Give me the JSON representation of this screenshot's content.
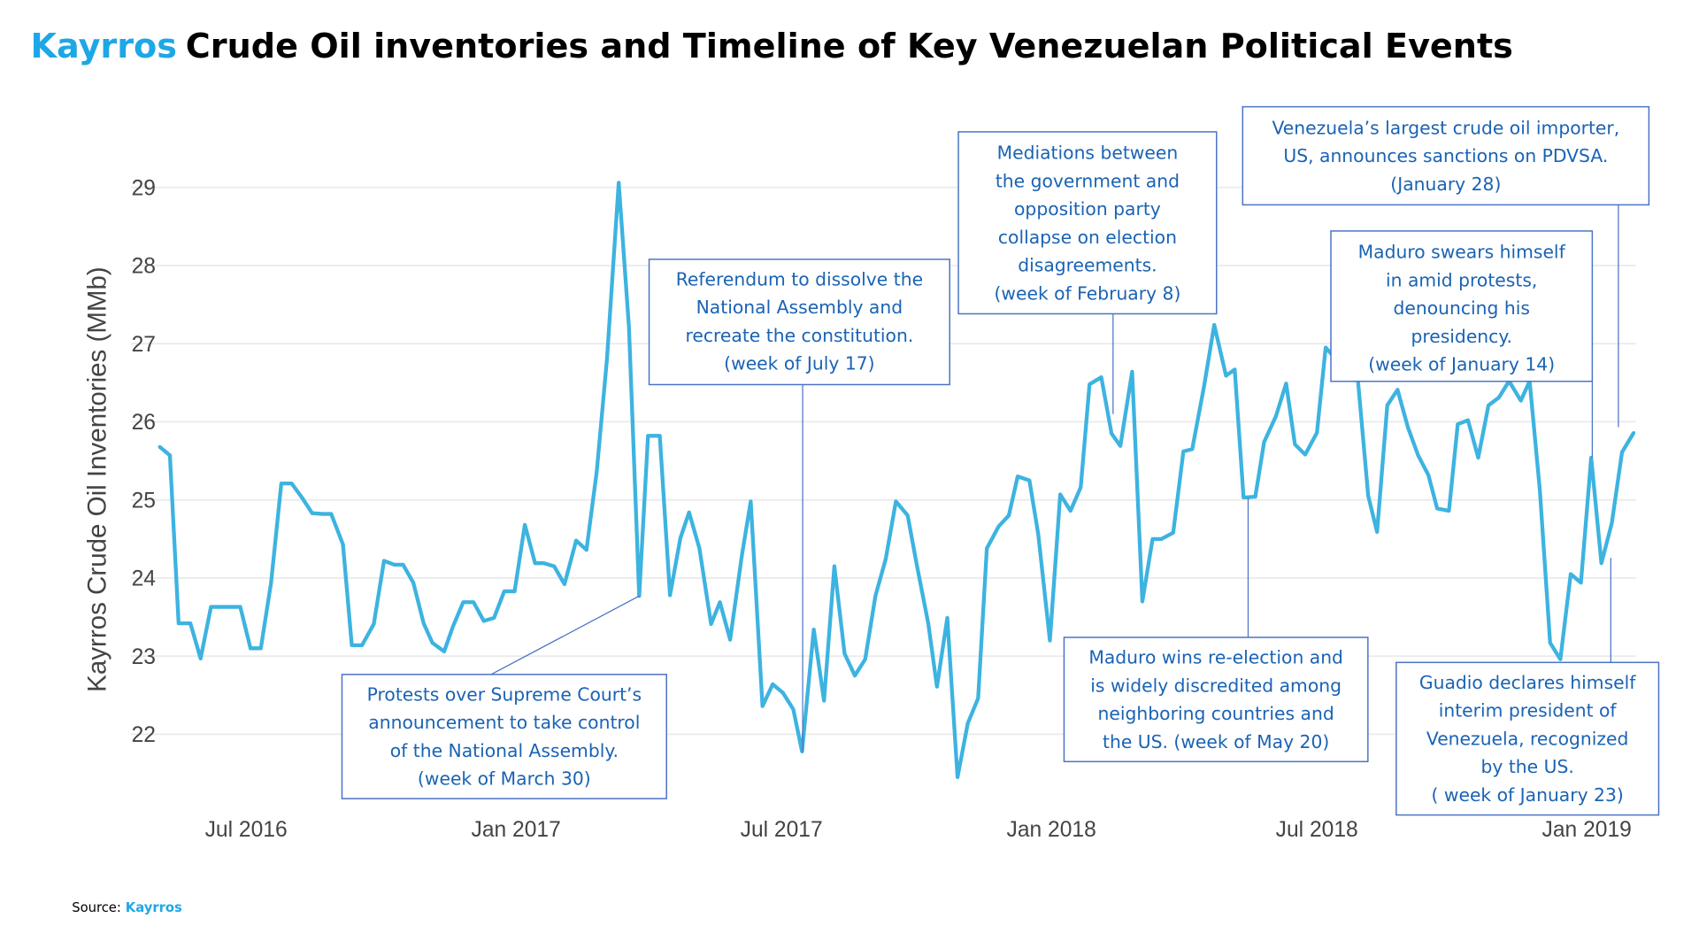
{
  "title": {
    "brand": "Kayrros",
    "text": "Crude Oil inventories and Timeline of Key Venezuelan Political Events"
  },
  "source": {
    "label": "Source:",
    "brand": "Kayrros"
  },
  "colors": {
    "brand": "#1ea7e6",
    "series": "#3db3e0",
    "annotation_text": "#1a63b4",
    "annotation_border": "#4a72c4"
  },
  "chart_data": {
    "type": "line",
    "title": "Kayrros Crude Oil inventories and Timeline of Key Venezuelan Political Events",
    "xlabel": "",
    "ylabel": "Kayrros Crude Oil Inventories (MMb)",
    "ylim": [
      21.3,
      29.3
    ],
    "yticks": [
      22,
      23,
      24,
      25,
      26,
      27,
      28,
      29
    ],
    "xticks": [
      {
        "date": "2016-07-01",
        "label": "Jul 2016"
      },
      {
        "date": "2017-01-01",
        "label": "Jan 2017"
      },
      {
        "date": "2017-07-01",
        "label": "Jul 2017"
      },
      {
        "date": "2018-01-01",
        "label": "Jan 2018"
      },
      {
        "date": "2018-07-01",
        "label": "Jul 2018"
      },
      {
        "date": "2019-01-01",
        "label": "Jan 2019"
      }
    ],
    "grid": true,
    "legend": "none",
    "points": [
      [
        "2016-05-03",
        25.68
      ],
      [
        "2016-05-10",
        25.57
      ],
      [
        "2016-05-16",
        23.42
      ],
      [
        "2016-05-24",
        23.42
      ],
      [
        "2016-05-31",
        22.97
      ],
      [
        "2016-06-07",
        23.63
      ],
      [
        "2016-06-14",
        23.63
      ],
      [
        "2016-06-20",
        23.63
      ],
      [
        "2016-06-27",
        23.63
      ],
      [
        "2016-07-04",
        23.1
      ],
      [
        "2016-07-11",
        23.1
      ],
      [
        "2016-07-18",
        23.94
      ],
      [
        "2016-07-25",
        25.21
      ],
      [
        "2016-08-01",
        25.21
      ],
      [
        "2016-08-08",
        25.03
      ],
      [
        "2016-08-15",
        24.83
      ],
      [
        "2016-08-22",
        24.82
      ],
      [
        "2016-08-28",
        24.82
      ],
      [
        "2016-09-05",
        24.43
      ],
      [
        "2016-09-11",
        23.14
      ],
      [
        "2016-09-18",
        23.14
      ],
      [
        "2016-09-26",
        23.41
      ],
      [
        "2016-10-03",
        24.22
      ],
      [
        "2016-10-10",
        24.17
      ],
      [
        "2016-10-16",
        24.17
      ],
      [
        "2016-10-23",
        23.94
      ],
      [
        "2016-10-30",
        23.42
      ],
      [
        "2016-11-05",
        23.17
      ],
      [
        "2016-11-13",
        23.06
      ],
      [
        "2016-11-19",
        23.38
      ],
      [
        "2016-11-26",
        23.69
      ],
      [
        "2016-12-03",
        23.69
      ],
      [
        "2016-12-10",
        23.45
      ],
      [
        "2016-12-17",
        23.49
      ],
      [
        "2016-12-24",
        23.83
      ],
      [
        "2016-12-31",
        23.83
      ],
      [
        "2017-01-07",
        24.68
      ],
      [
        "2017-01-14",
        24.19
      ],
      [
        "2017-01-20",
        24.19
      ],
      [
        "2017-01-27",
        24.15
      ],
      [
        "2017-02-03",
        23.92
      ],
      [
        "2017-02-11",
        24.48
      ],
      [
        "2017-02-18",
        24.36
      ],
      [
        "2017-02-25",
        25.36
      ],
      [
        "2017-03-04",
        26.8
      ],
      [
        "2017-03-12",
        29.06
      ],
      [
        "2017-03-19",
        27.21
      ],
      [
        "2017-03-26",
        23.77
      ],
      [
        "2017-04-01",
        25.82
      ],
      [
        "2017-04-09",
        25.82
      ],
      [
        "2017-04-16",
        23.78
      ],
      [
        "2017-04-23",
        24.51
      ],
      [
        "2017-04-29",
        24.84
      ],
      [
        "2017-05-06",
        24.38
      ],
      [
        "2017-05-14",
        23.41
      ],
      [
        "2017-05-20",
        23.69
      ],
      [
        "2017-05-27",
        23.21
      ],
      [
        "2017-06-04",
        24.29
      ],
      [
        "2017-06-10",
        24.98
      ],
      [
        "2017-06-18",
        22.36
      ],
      [
        "2017-06-25",
        22.64
      ],
      [
        "2017-07-02",
        22.53
      ],
      [
        "2017-07-09",
        22.32
      ],
      [
        "2017-07-15",
        21.78
      ],
      [
        "2017-07-23",
        23.34
      ],
      [
        "2017-07-30",
        22.43
      ],
      [
        "2017-08-06",
        24.15
      ],
      [
        "2017-08-13",
        23.03
      ],
      [
        "2017-08-20",
        22.75
      ],
      [
        "2017-08-27",
        22.96
      ],
      [
        "2017-09-03",
        23.77
      ],
      [
        "2017-09-10",
        24.24
      ],
      [
        "2017-09-17",
        24.98
      ],
      [
        "2017-09-25",
        24.8
      ],
      [
        "2017-10-01",
        24.19
      ],
      [
        "2017-10-09",
        23.42
      ],
      [
        "2017-10-15",
        22.61
      ],
      [
        "2017-10-22",
        23.49
      ],
      [
        "2017-10-29",
        21.45
      ],
      [
        "2017-11-05",
        22.14
      ],
      [
        "2017-11-12",
        22.46
      ],
      [
        "2017-11-18",
        24.38
      ],
      [
        "2017-11-26",
        24.66
      ],
      [
        "2017-12-03",
        24.8
      ],
      [
        "2017-12-09",
        25.3
      ],
      [
        "2017-12-17",
        25.25
      ],
      [
        "2017-12-23",
        24.56
      ],
      [
        "2017-12-31",
        23.2
      ],
      [
        "2018-01-07",
        25.07
      ],
      [
        "2018-01-14",
        24.86
      ],
      [
        "2018-01-21",
        25.16
      ],
      [
        "2018-01-27",
        26.48
      ],
      [
        "2018-02-04",
        26.57
      ],
      [
        "2018-02-11",
        25.85
      ],
      [
        "2018-02-17",
        25.69
      ],
      [
        "2018-02-25",
        26.64
      ],
      [
        "2018-03-04",
        23.7
      ],
      [
        "2018-03-11",
        24.5
      ],
      [
        "2018-03-17",
        24.5
      ],
      [
        "2018-03-25",
        24.58
      ],
      [
        "2018-04-01",
        25.62
      ],
      [
        "2018-04-07",
        25.65
      ],
      [
        "2018-04-15",
        26.45
      ],
      [
        "2018-04-22",
        27.24
      ],
      [
        "2018-04-30",
        26.59
      ],
      [
        "2018-05-06",
        26.67
      ],
      [
        "2018-05-12",
        25.03
      ],
      [
        "2018-05-20",
        25.04
      ],
      [
        "2018-05-26",
        25.74
      ],
      [
        "2018-06-03",
        26.07
      ],
      [
        "2018-06-10",
        26.49
      ],
      [
        "2018-06-16",
        25.71
      ],
      [
        "2018-06-23",
        25.58
      ],
      [
        "2018-07-01",
        25.86
      ],
      [
        "2018-07-07",
        26.95
      ],
      [
        "2018-07-14",
        26.8
      ],
      [
        "2018-07-22",
        26.7
      ],
      [
        "2018-07-29",
        26.52
      ],
      [
        "2018-08-05",
        25.05
      ],
      [
        "2018-08-11",
        24.59
      ],
      [
        "2018-08-18",
        26.21
      ],
      [
        "2018-08-25",
        26.41
      ],
      [
        "2018-09-01",
        25.93
      ],
      [
        "2018-09-08",
        25.57
      ],
      [
        "2018-09-15",
        25.32
      ],
      [
        "2018-09-21",
        24.89
      ],
      [
        "2018-09-29",
        24.86
      ],
      [
        "2018-10-05",
        25.97
      ],
      [
        "2018-10-12",
        26.02
      ],
      [
        "2018-10-19",
        25.54
      ],
      [
        "2018-10-26",
        26.21
      ],
      [
        "2018-11-02",
        26.31
      ],
      [
        "2018-11-09",
        26.52
      ],
      [
        "2018-11-17",
        26.27
      ],
      [
        "2018-11-23",
        26.52
      ],
      [
        "2018-11-30",
        25.12
      ],
      [
        "2018-12-07",
        23.17
      ],
      [
        "2018-12-14",
        22.96
      ],
      [
        "2018-12-21",
        24.05
      ],
      [
        "2018-12-28",
        23.94
      ],
      [
        "2019-01-04",
        25.54
      ],
      [
        "2019-01-11",
        24.19
      ],
      [
        "2019-01-18",
        24.7
      ],
      [
        "2019-01-25",
        25.61
      ],
      [
        "2019-02-02",
        25.86
      ]
    ],
    "annotations": [
      {
        "lines": [
          "Protests over Supreme Court’s",
          "announcement to take control",
          "of the  National Assembly.",
          "(week of March 30)"
        ]
      },
      {
        "lines": [
          "Referendum to dissolve the",
          "National Assembly and",
          "recreate the constitution.",
          "(week of July 17)"
        ]
      },
      {
        "lines": [
          "Mediations between",
          "the government and",
          "opposition party",
          "collapse on election",
          "disagreements.",
          "(week of February 8)"
        ]
      },
      {
        "lines": [
          "Maduro wins re-election and",
          "is widely discredited among",
          "neighboring countries and",
          "the US. (week of May 20)"
        ]
      },
      {
        "lines": [
          "Venezuela’s largest crude oil importer,",
          "US, announces sanctions on PDVSA.",
          "(January 28)"
        ]
      },
      {
        "lines": [
          "Maduro swears himself",
          "in amid protests,",
          "denouncing his",
          "presidency.",
          "(week of January 14)"
        ]
      },
      {
        "lines": [
          "Guadio declares himself",
          "interim president of",
          "Venezuela, recognized",
          "by the US.",
          "( week of January 23)"
        ]
      }
    ]
  }
}
